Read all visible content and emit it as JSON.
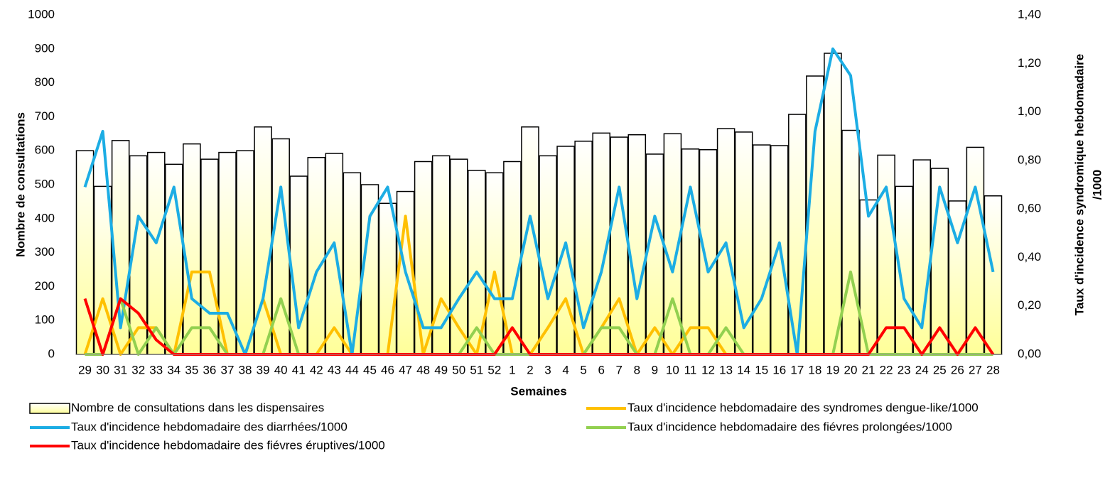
{
  "chart_data": {
    "type": "bar-line",
    "xlabel": "Semaines",
    "ylabel": "Nombre de consultations",
    "y2label": [
      "Taux d'incidence syndromique hebdomadaire",
      "/1000"
    ],
    "categories": [
      29,
      30,
      31,
      32,
      33,
      34,
      35,
      36,
      37,
      38,
      39,
      40,
      41,
      42,
      43,
      44,
      45,
      46,
      47,
      48,
      49,
      50,
      51,
      52,
      1,
      2,
      3,
      4,
      5,
      6,
      7,
      8,
      9,
      10,
      11,
      12,
      13,
      14,
      15,
      16,
      17,
      18,
      19,
      20,
      21,
      22,
      23,
      24,
      25,
      26,
      27,
      28
    ],
    "ylim": [
      0,
      1000
    ],
    "yticks": [
      0,
      100,
      200,
      300,
      400,
      500,
      600,
      700,
      800,
      900,
      1000
    ],
    "y2lim": [
      0,
      1.4
    ],
    "y2ticks": [
      {
        "value": 0,
        "label": "0,00"
      },
      {
        "value": 0.2,
        "label": "0,20"
      },
      {
        "value": 0.4,
        "label": "0,40"
      },
      {
        "value": 0.6,
        "label": "0,60"
      },
      {
        "value": 0.8,
        "label": "0,80"
      },
      {
        "value": 1.0,
        "label": "1,00"
      },
      {
        "value": 1.2,
        "label": "1,20"
      },
      {
        "value": 1.4,
        "label": "1,40"
      }
    ],
    "grid": false,
    "series": [
      {
        "name": "Nombre de consultations dans les dispensaires",
        "kind": "bar",
        "color": "#ffff99",
        "values": [
          600,
          495,
          630,
          585,
          595,
          560,
          620,
          575,
          595,
          600,
          670,
          635,
          525,
          580,
          592,
          535,
          500,
          445,
          480,
          568,
          585,
          575,
          542,
          535,
          568,
          670,
          585,
          613,
          628,
          652,
          640,
          647,
          590,
          650,
          605,
          603,
          665,
          655,
          617,
          615,
          707,
          820,
          887,
          660,
          455,
          587,
          495,
          573,
          548,
          452,
          610,
          467
        ]
      },
      {
        "name": "Taux d'incidence hebdomadaire des syndromes dengue-like/1000",
        "kind": "line",
        "axis": "y2",
        "color": "#ffc000",
        "values": [
          0,
          0.23,
          0,
          0.11,
          0.11,
          0,
          0.34,
          0.34,
          0,
          0,
          0.23,
          0,
          0,
          0,
          0.11,
          0,
          0,
          0,
          0.57,
          0,
          0.23,
          0.11,
          0,
          0.34,
          0,
          0,
          0.11,
          0.23,
          0,
          0.11,
          0.23,
          0,
          0.11,
          0,
          0.11,
          0.11,
          0,
          0,
          0,
          0,
          0,
          0,
          0,
          0,
          0,
          0,
          0,
          0,
          0,
          0,
          0,
          0
        ]
      },
      {
        "name": "Taux d'incidence hebdomadaire des diarrhées/1000",
        "kind": "line",
        "axis": "y2",
        "color": "#1cade4",
        "values": [
          0.69,
          0.92,
          0.11,
          0.57,
          0.46,
          0.69,
          0.23,
          0.17,
          0.17,
          0,
          0.23,
          0.69,
          0.11,
          0.34,
          0.46,
          0,
          0.57,
          0.69,
          0.34,
          0.11,
          0.11,
          0.23,
          0.34,
          0.23,
          0.23,
          0.57,
          0.23,
          0.46,
          0.11,
          0.34,
          0.69,
          0.23,
          0.57,
          0.34,
          0.69,
          0.34,
          0.46,
          0.11,
          0.23,
          0.46,
          0,
          0.92,
          1.26,
          1.15,
          0.57,
          0.69,
          0.23,
          0.11,
          0.69,
          0.46,
          0.69,
          0.34
        ]
      },
      {
        "name": "Taux d'incidence hebdomadaire des fiévres prolongées/1000",
        "kind": "line",
        "axis": "y2",
        "color": "#92d050",
        "values": [
          0,
          0,
          0.23,
          0,
          0.11,
          0,
          0.11,
          0.11,
          0,
          0,
          0,
          0.23,
          0,
          0,
          0,
          0,
          0,
          0,
          0,
          0,
          0,
          0,
          0.11,
          0,
          0,
          0,
          0,
          0,
          0,
          0.11,
          0.11,
          0,
          0,
          0.23,
          0,
          0,
          0.11,
          0,
          0,
          0,
          0,
          0,
          0,
          0.34,
          0,
          0,
          0,
          0,
          0,
          0,
          0,
          0
        ]
      },
      {
        "name": "Taux d'incidence hebdomadaire des fiévres éruptives/1000",
        "kind": "line",
        "axis": "y2",
        "color": "#ff0000",
        "values": [
          0.23,
          0,
          0.23,
          0.17,
          0.06,
          0,
          0,
          0,
          0,
          0,
          0,
          0,
          0,
          0,
          0,
          0,
          0,
          0,
          0,
          0,
          0,
          0,
          0,
          0,
          0.11,
          0,
          0,
          0,
          0,
          0,
          0,
          0,
          0,
          0,
          0,
          0,
          0,
          0,
          0,
          0,
          0,
          0,
          0,
          0,
          0,
          0.11,
          0.11,
          0,
          0.11,
          0,
          0.11,
          0
        ]
      }
    ]
  }
}
